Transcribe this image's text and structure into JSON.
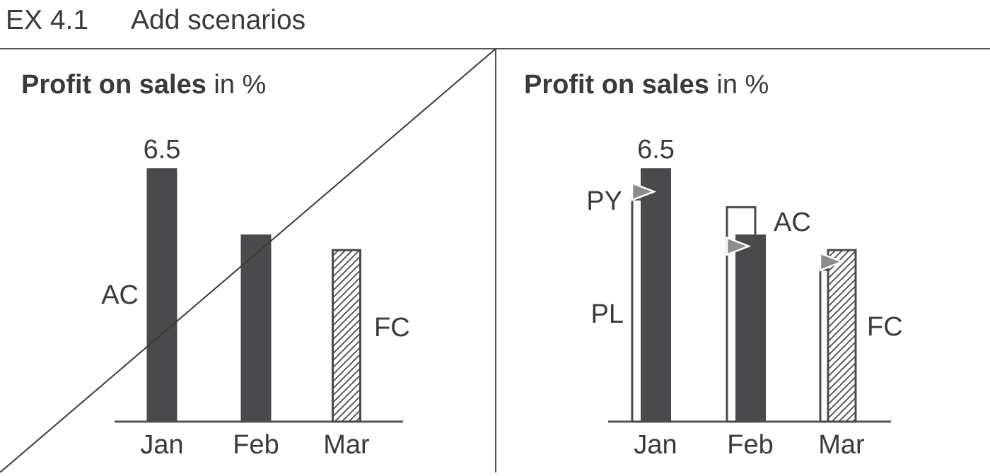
{
  "header": {
    "exhibit_number": "EX 4.1",
    "title": "Add scenarios"
  },
  "colors": {
    "actual": "#4a4a4c",
    "text": "#3a3a3a",
    "rule": "#555555",
    "marker": "#8c8c8c",
    "background": "#ffffff"
  },
  "panels": [
    {
      "id": "left",
      "title_bold": "Profit on sales",
      "title_rest": " in %",
      "crossed_out": true
    },
    {
      "id": "right",
      "title_bold": "Profit on sales",
      "title_rest": " in %",
      "crossed_out": false
    }
  ],
  "chart_data": [
    {
      "type": "bar",
      "title": "Profit on sales in %",
      "categories": [
        "Jan",
        "Feb",
        "Mar"
      ],
      "series": [
        {
          "name": "AC",
          "values": [
            6.5,
            4.8,
            null
          ]
        },
        {
          "name": "FC",
          "values": [
            null,
            null,
            4.4
          ]
        }
      ],
      "data_labels": [
        "6.5",
        "",
        ""
      ],
      "series_labels": [
        {
          "text": "AC",
          "series": "AC",
          "position": "left"
        },
        {
          "text": "FC",
          "series": "FC",
          "position": "right"
        }
      ],
      "ylim": [
        0,
        8.5
      ],
      "grid": false,
      "legend": "none",
      "crossed_out": true
    },
    {
      "type": "bar",
      "title": "Profit on sales in %",
      "categories": [
        "Jan",
        "Feb",
        "Mar"
      ],
      "series": [
        {
          "name": "AC",
          "values": [
            6.5,
            4.8,
            null
          ]
        },
        {
          "name": "FC",
          "values": [
            null,
            null,
            4.4
          ]
        },
        {
          "name": "PL",
          "values": [
            5.7,
            5.5,
            3.9
          ]
        },
        {
          "name": "PY",
          "values": [
            5.9,
            4.5,
            4.1
          ]
        }
      ],
      "data_labels": [
        "6.5",
        "",
        ""
      ],
      "series_labels": [
        {
          "text": "PY",
          "series": "PY",
          "position": "left"
        },
        {
          "text": "PL",
          "series": "PL",
          "position": "left"
        },
        {
          "text": "AC",
          "series": "AC",
          "position": "right"
        },
        {
          "text": "FC",
          "series": "FC",
          "position": "right"
        }
      ],
      "ylim": [
        0,
        8.5
      ],
      "grid": false,
      "legend": "none",
      "crossed_out": false
    }
  ]
}
